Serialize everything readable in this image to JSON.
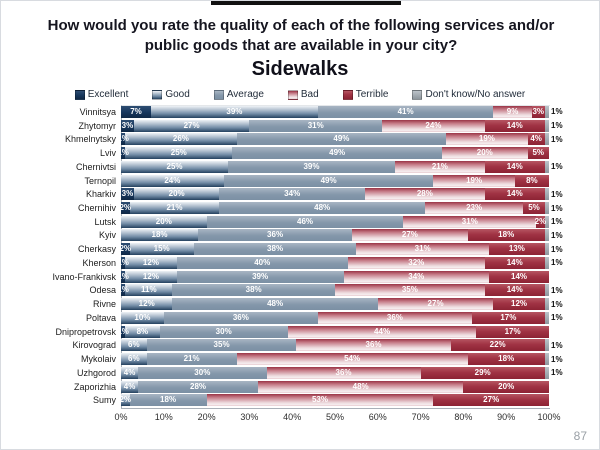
{
  "title": "How would you rate the quality of each of the following services and/or public goods that are available in your city?",
  "subtitle": "Sidewalks",
  "page": {
    "number": "87"
  },
  "colors": {
    "excellent": "#16365c",
    "good": "#718ba5",
    "average": "#8497aa",
    "bad": "#c57a86",
    "terrible": "#9e2b3b",
    "dont_know": "#8e979e"
  },
  "chart_data": {
    "type": "bar",
    "orientation": "horizontal-stacked",
    "unit": "%",
    "title": "Sidewalks",
    "legend_position": "top",
    "grid": false,
    "xlim": [
      0,
      100
    ],
    "x_ticks": [
      "0%",
      "10%",
      "20%",
      "30%",
      "40%",
      "50%",
      "60%",
      "70%",
      "80%",
      "90%",
      "100%"
    ],
    "categories": [
      "Vinnitsya",
      "Zhytomyr",
      "Khmelnytsky",
      "Lviv",
      "Chernivtsi",
      "Ternopil",
      "Kharkiv",
      "Chernihiv",
      "Lutsk",
      "Kyiv",
      "Cherkasy",
      "Kherson",
      "Ivano-Frankivsk",
      "Odesa",
      "Rivne",
      "Poltava",
      "Dnipropetrovsk",
      "Kirovograd",
      "Mykolaiv",
      "Uzhgorod",
      "Zaporizhia",
      "Sumy"
    ],
    "series": [
      {
        "name": "Excellent",
        "key": "excellent",
        "color": "#16365c",
        "values": [
          7,
          3,
          1,
          1,
          0,
          0,
          3,
          2,
          0,
          0,
          2,
          1,
          1,
          1,
          0,
          0,
          1,
          0,
          0,
          0,
          0,
          0
        ]
      },
      {
        "name": "Good",
        "key": "good",
        "color": "#718ba5",
        "values": [
          39,
          27,
          26,
          25,
          25,
          24,
          20,
          21,
          20,
          18,
          15,
          12,
          12,
          11,
          12,
          10,
          8,
          6,
          6,
          4,
          4,
          2
        ]
      },
      {
        "name": "Average",
        "key": "average",
        "color": "#8497aa",
        "values": [
          41,
          31,
          49,
          49,
          39,
          49,
          34,
          48,
          46,
          36,
          38,
          40,
          39,
          38,
          48,
          36,
          30,
          35,
          21,
          30,
          28,
          18
        ]
      },
      {
        "name": "Bad",
        "key": "bad",
        "color": "#c57a86",
        "values": [
          9,
          24,
          19,
          20,
          21,
          19,
          28,
          23,
          31,
          27,
          31,
          32,
          34,
          35,
          27,
          36,
          44,
          36,
          54,
          36,
          48,
          53
        ]
      },
      {
        "name": "Terrible",
        "key": "terrible",
        "color": "#9e2b3b",
        "values": [
          3,
          14,
          4,
          5,
          14,
          8,
          14,
          5,
          2,
          18,
          13,
          14,
          14,
          14,
          12,
          17,
          17,
          22,
          18,
          29,
          20,
          27
        ]
      },
      {
        "name": "Don't know/No answer",
        "key": "dk",
        "color": "#8e979e",
        "values": [
          1,
          1,
          1,
          0,
          1,
          0,
          1,
          1,
          1,
          1,
          1,
          1,
          0,
          1,
          1,
          1,
          0,
          1,
          1,
          1,
          0,
          0
        ]
      }
    ]
  }
}
